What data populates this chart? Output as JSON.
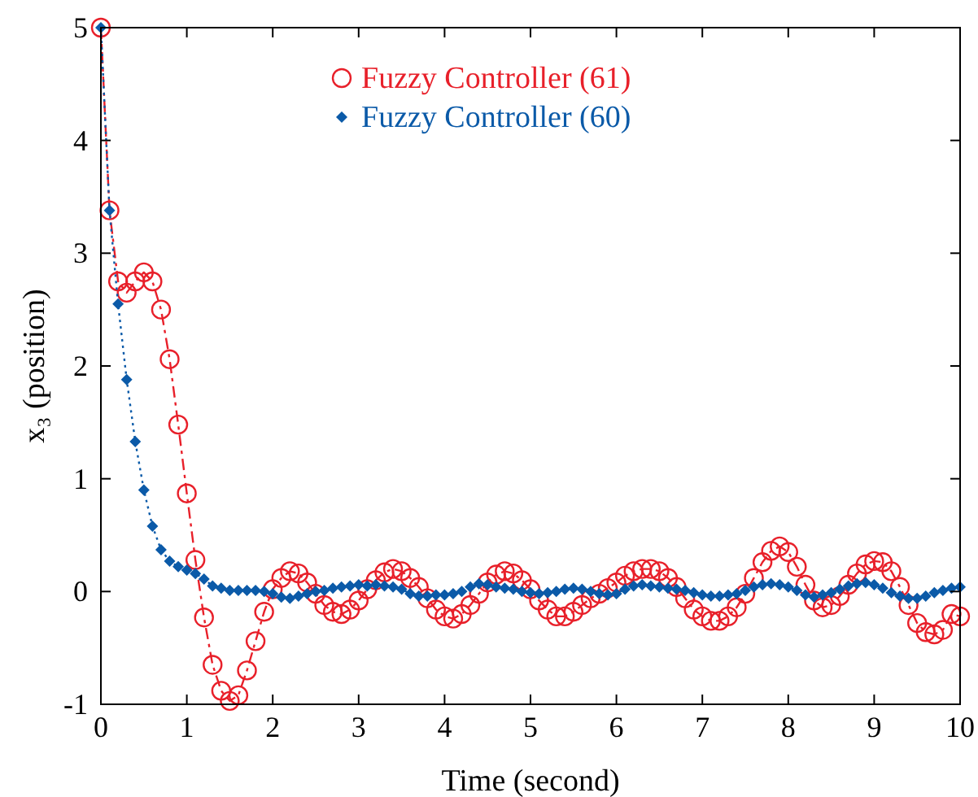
{
  "chart_data": {
    "type": "line",
    "xlabel": "Time (second)",
    "ylabel": "x₃ (position)",
    "x": [
      0,
      0.1,
      0.2,
      0.3,
      0.4,
      0.5,
      0.6,
      0.7,
      0.8,
      0.9,
      1,
      1.1,
      1.2,
      1.3,
      1.4,
      1.5,
      1.6,
      1.7,
      1.8,
      1.9,
      2,
      2.1,
      2.2,
      2.3,
      2.4,
      2.5,
      2.6,
      2.7,
      2.8,
      2.9,
      3,
      3.1,
      3.2,
      3.3,
      3.4,
      3.5,
      3.6,
      3.7,
      3.8,
      3.9,
      4,
      4.1,
      4.2,
      4.3,
      4.4,
      4.5,
      4.6,
      4.7,
      4.8,
      4.9,
      5,
      5.1,
      5.2,
      5.3,
      5.4,
      5.5,
      5.6,
      5.7,
      5.8,
      5.9,
      6,
      6.1,
      6.2,
      6.3,
      6.4,
      6.5,
      6.6,
      6.7,
      6.8,
      6.9,
      7,
      7.1,
      7.2,
      7.3,
      7.4,
      7.5,
      7.6,
      7.7,
      7.8,
      7.9,
      8,
      8.1,
      8.2,
      8.3,
      8.4,
      8.5,
      8.6,
      8.7,
      8.8,
      8.9,
      9,
      9.1,
      9.2,
      9.3,
      9.4,
      9.5,
      9.6,
      9.7,
      9.8,
      9.9,
      10
    ],
    "series": [
      {
        "name": "Fuzzy Controller (61)",
        "color": "#e8202a",
        "marker": "circle",
        "line_style": "dashed",
        "values": [
          5,
          3.38,
          2.75,
          2.65,
          2.75,
          2.83,
          2.75,
          2.5,
          2.06,
          1.48,
          0.87,
          0.28,
          -0.23,
          -0.65,
          -0.88,
          -0.97,
          -0.92,
          -0.7,
          -0.44,
          -0.18,
          0.02,
          0.12,
          0.18,
          0.16,
          0.08,
          -0.02,
          -0.12,
          -0.18,
          -0.2,
          -0.16,
          -0.08,
          0.02,
          0.1,
          0.17,
          0.2,
          0.18,
          0.12,
          0.04,
          -0.06,
          -0.16,
          -0.22,
          -0.24,
          -0.2,
          -0.12,
          -0.02,
          0.08,
          0.15,
          0.18,
          0.16,
          0.1,
          0.02,
          -0.08,
          -0.16,
          -0.22,
          -0.22,
          -0.18,
          -0.12,
          -0.06,
          -0.02,
          0.03,
          0.08,
          0.14,
          0.18,
          0.2,
          0.2,
          0.18,
          0.12,
          0.04,
          -0.06,
          -0.16,
          -0.22,
          -0.26,
          -0.26,
          -0.22,
          -0.14,
          -0.02,
          0.12,
          0.26,
          0.36,
          0.4,
          0.35,
          0.22,
          0.06,
          -0.08,
          -0.14,
          -0.12,
          -0.04,
          0.06,
          0.16,
          0.24,
          0.27,
          0.26,
          0.18,
          0.04,
          -0.12,
          -0.28,
          -0.36,
          -0.38,
          -0.34,
          -0.2,
          -0.22
        ]
      },
      {
        "name": "Fuzzy Controller (60)",
        "color": "#0b5aa8",
        "marker": "diamond",
        "line_style": "dotted",
        "values": [
          5,
          3.38,
          2.55,
          1.88,
          1.33,
          0.9,
          0.58,
          0.37,
          0.27,
          0.22,
          0.19,
          0.16,
          0.11,
          0.05,
          0.03,
          0.01,
          0.01,
          0.01,
          0.01,
          0,
          -0.02,
          -0.05,
          -0.06,
          -0.04,
          -0.02,
          0,
          0.01,
          0.03,
          0.04,
          0.05,
          0.06,
          0.05,
          0.06,
          0.05,
          0.04,
          0.02,
          -0.02,
          -0.04,
          -0.04,
          -0.03,
          -0.03,
          -0.02,
          0,
          0.04,
          0.07,
          0.06,
          0.04,
          0.03,
          0.02,
          0,
          -0.01,
          -0.02,
          -0.01,
          0,
          0.02,
          0.03,
          0.02,
          0,
          -0.02,
          -0.03,
          -0.02,
          0.02,
          0.05,
          0.06,
          0.05,
          0.04,
          0.03,
          0.02,
          0.01,
          -0.01,
          -0.03,
          -0.04,
          -0.04,
          -0.03,
          -0.02,
          0.01,
          0.04,
          0.06,
          0.07,
          0.06,
          0.04,
          0.01,
          -0.03,
          -0.05,
          -0.03,
          -0.01,
          0.02,
          0.05,
          0.07,
          0.08,
          0.06,
          0.03,
          -0.01,
          -0.04,
          -0.06,
          -0.06,
          -0.04,
          -0.01,
          0.01,
          0.03,
          0.04
        ]
      }
    ],
    "xlim": [
      0,
      10
    ],
    "xticks": [
      0,
      1,
      2,
      3,
      4,
      5,
      6,
      7,
      8,
      9,
      10
    ],
    "ylim": [
      -1,
      5
    ],
    "yticks": [
      -1,
      0,
      1,
      2,
      3,
      4,
      5
    ],
    "grid": false,
    "legend": "top"
  }
}
